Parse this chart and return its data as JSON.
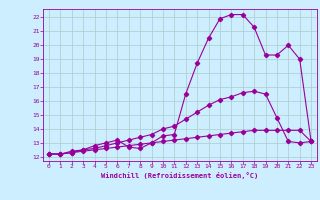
{
  "xlabel": "Windchill (Refroidissement éolien,°C)",
  "background_color": "#cceeff",
  "grid_color": "#aacccc",
  "line_color": "#990099",
  "xlim": [
    -0.5,
    23.5
  ],
  "ylim": [
    11.7,
    22.6
  ],
  "xticks": [
    0,
    1,
    2,
    3,
    4,
    5,
    6,
    7,
    8,
    9,
    10,
    11,
    12,
    13,
    14,
    15,
    16,
    17,
    18,
    19,
    20,
    21,
    22,
    23
  ],
  "yticks": [
    12,
    13,
    14,
    15,
    16,
    17,
    18,
    19,
    20,
    21,
    22
  ],
  "line1_x": [
    0,
    1,
    2,
    3,
    4,
    5,
    6,
    7,
    8,
    9,
    10,
    11,
    12,
    13,
    14,
    15,
    16,
    17,
    18,
    19,
    20,
    21,
    22,
    23
  ],
  "line1_y": [
    12.2,
    12.2,
    12.4,
    12.5,
    12.8,
    13.0,
    13.2,
    12.7,
    12.6,
    13.0,
    13.5,
    13.6,
    16.5,
    18.7,
    20.5,
    21.9,
    22.2,
    22.2,
    21.3,
    19.3,
    19.3,
    20.0,
    19.0,
    13.1
  ],
  "line2_x": [
    0,
    1,
    2,
    3,
    4,
    5,
    6,
    7,
    8,
    9,
    10,
    11,
    12,
    13,
    14,
    15,
    16,
    17,
    18,
    19,
    20,
    21,
    22,
    23
  ],
  "line2_y": [
    12.2,
    12.2,
    12.3,
    12.5,
    12.6,
    12.8,
    13.0,
    13.2,
    13.4,
    13.6,
    14.0,
    14.2,
    14.7,
    15.2,
    15.7,
    16.1,
    16.3,
    16.6,
    16.7,
    16.5,
    14.8,
    13.1,
    13.0,
    13.1
  ],
  "line3_x": [
    0,
    1,
    2,
    3,
    4,
    5,
    6,
    7,
    8,
    9,
    10,
    11,
    12,
    13,
    14,
    15,
    16,
    17,
    18,
    19,
    20,
    21,
    22,
    23
  ],
  "line3_y": [
    12.2,
    12.2,
    12.3,
    12.4,
    12.5,
    12.6,
    12.7,
    12.8,
    12.9,
    13.0,
    13.1,
    13.2,
    13.3,
    13.4,
    13.5,
    13.6,
    13.7,
    13.8,
    13.9,
    13.9,
    13.9,
    13.9,
    13.9,
    13.1
  ]
}
